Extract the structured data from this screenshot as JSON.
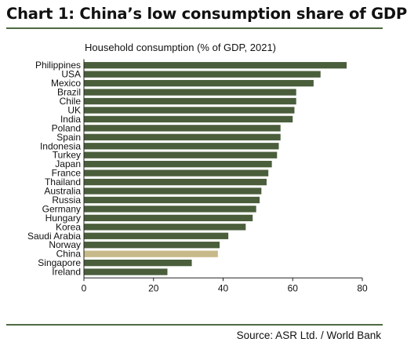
{
  "title": "Chart 1: China’s low consumption share of GDP",
  "source": "Source: ASR Ltd. / World Bank",
  "colors": {
    "bar": "#4a5e3c",
    "highlight": "#c8b98a",
    "rule": "#4e6a44"
  },
  "chart_data": {
    "type": "bar",
    "orientation": "horizontal",
    "title": "Household consumption (% of GDP, 2021)",
    "xlabel": "",
    "ylabel": "",
    "xlim": [
      0,
      80
    ],
    "xticks": [
      "0",
      "20",
      "40",
      "60",
      "80"
    ],
    "grid": false,
    "highlight": "China",
    "categories": [
      "Philippines",
      "USA",
      "Mexico",
      "Brazil",
      "Chile",
      "UK",
      "India",
      "Poland",
      "Spain",
      "Indonesia",
      "Turkey",
      "Japan",
      "France",
      "Thailand",
      "Australia",
      "Russia",
      "Germany",
      "Hungary",
      "Korea",
      "Saudi Arabia",
      "Norway",
      "China",
      "Singapore",
      "Ireland"
    ],
    "values": [
      75.5,
      68,
      66,
      61,
      61,
      60.5,
      60,
      56.5,
      56.5,
      56,
      55.5,
      54,
      53,
      52.5,
      51,
      50.5,
      49.5,
      48.5,
      46.5,
      41.5,
      39,
      38.5,
      31,
      24
    ]
  }
}
